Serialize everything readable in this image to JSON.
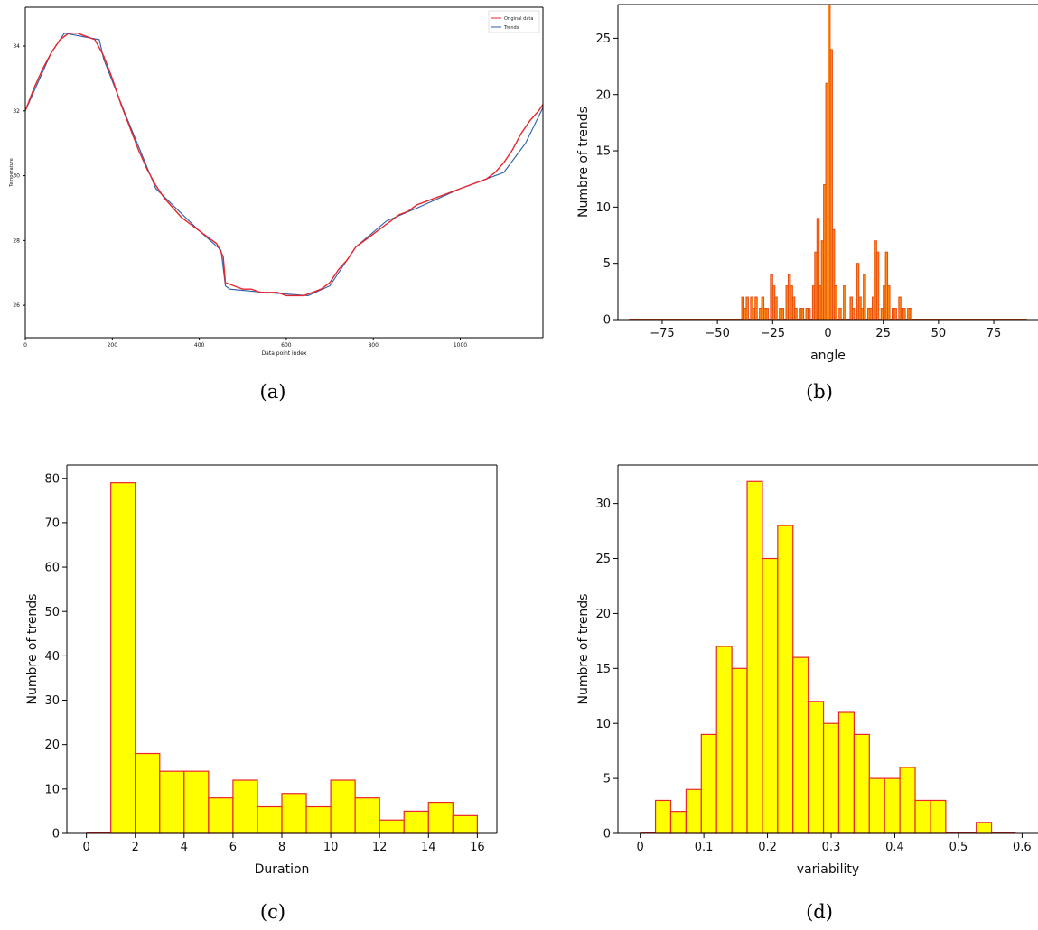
{
  "captions": [
    "(a)",
    "(b)",
    "(c)",
    "(d)"
  ],
  "colors": {
    "original": "#e8262b",
    "trend": "#2b5ea8",
    "hist_fill": "#ffff00",
    "hist_edge": "#e8262b",
    "angle_fill": "#ff8c1a",
    "angle_edge": "#e84b10"
  },
  "chart_data": [
    {
      "type": "line",
      "xlabel": "Data point index",
      "ylabel": "Temperature",
      "xlim": [
        0,
        1190
      ],
      "ylim": [
        25,
        35.2
      ],
      "xticks": [
        0,
        200,
        400,
        600,
        800,
        1000
      ],
      "yticks": [
        26,
        28,
        30,
        32,
        34
      ],
      "legend": "top-right",
      "series": [
        {
          "name": "Original data",
          "x": [
            0,
            20,
            40,
            60,
            80,
            100,
            120,
            140,
            160,
            180,
            200,
            220,
            240,
            260,
            280,
            300,
            320,
            340,
            360,
            380,
            400,
            420,
            440,
            455,
            460,
            480,
            500,
            520,
            540,
            560,
            580,
            600,
            620,
            640,
            660,
            680,
            700,
            720,
            740,
            760,
            780,
            800,
            820,
            840,
            860,
            880,
            900,
            920,
            940,
            960,
            980,
            1000,
            1020,
            1040,
            1060,
            1080,
            1100,
            1120,
            1140,
            1160,
            1180,
            1190
          ],
          "y": [
            32.0,
            32.7,
            33.3,
            33.8,
            34.2,
            34.4,
            34.4,
            34.3,
            34.2,
            33.7,
            33.0,
            32.2,
            31.5,
            30.8,
            30.2,
            29.7,
            29.3,
            29.0,
            28.7,
            28.5,
            28.3,
            28.1,
            27.9,
            27.5,
            26.7,
            26.6,
            26.5,
            26.5,
            26.4,
            26.4,
            26.4,
            26.3,
            26.3,
            26.3,
            26.4,
            26.5,
            26.7,
            27.1,
            27.4,
            27.8,
            28.0,
            28.2,
            28.4,
            28.6,
            28.8,
            28.9,
            29.1,
            29.2,
            29.3,
            29.4,
            29.5,
            29.6,
            29.7,
            29.8,
            29.9,
            30.1,
            30.4,
            30.8,
            31.3,
            31.7,
            32.0,
            32.2
          ]
        },
        {
          "name": "Trends",
          "x": [
            0,
            30,
            60,
            90,
            130,
            170,
            180,
            230,
            300,
            400,
            450,
            460,
            470,
            550,
            650,
            700,
            760,
            830,
            900,
            1000,
            1100,
            1150,
            1190
          ],
          "y": [
            32.0,
            32.9,
            33.8,
            34.4,
            34.3,
            34.2,
            33.6,
            31.9,
            29.6,
            28.3,
            27.7,
            26.6,
            26.5,
            26.4,
            26.3,
            26.6,
            27.8,
            28.6,
            29.0,
            29.6,
            30.1,
            31.0,
            32.1
          ]
        }
      ]
    },
    {
      "type": "bar",
      "xlabel": "angle",
      "ylabel": "Numbre of trends",
      "xlim": [
        -95,
        95
      ],
      "ylim": [
        0,
        28
      ],
      "xticks": [
        -75,
        -50,
        -25,
        0,
        25,
        50,
        75
      ],
      "yticks": [
        0,
        5,
        10,
        15,
        20,
        25
      ],
      "bin_width": 1,
      "bins": [
        [
          -39,
          2
        ],
        [
          -38,
          1
        ],
        [
          -37,
          2
        ],
        [
          -35,
          2
        ],
        [
          -34,
          1
        ],
        [
          -33,
          2
        ],
        [
          -31,
          1
        ],
        [
          -30,
          2
        ],
        [
          -29,
          1
        ],
        [
          -28,
          1
        ],
        [
          -26,
          4
        ],
        [
          -25,
          3
        ],
        [
          -24,
          2
        ],
        [
          -22,
          1
        ],
        [
          -21,
          1
        ],
        [
          -19,
          3
        ],
        [
          -18,
          4
        ],
        [
          -17,
          3
        ],
        [
          -16,
          2
        ],
        [
          -15,
          1
        ],
        [
          -13,
          1
        ],
        [
          -12,
          1
        ],
        [
          -10,
          1
        ],
        [
          -9,
          1
        ],
        [
          -7,
          3
        ],
        [
          -6,
          6
        ],
        [
          -5,
          9
        ],
        [
          -4,
          3
        ],
        [
          -3,
          7
        ],
        [
          -2,
          12
        ],
        [
          -1,
          21
        ],
        [
          0,
          28
        ],
        [
          1,
          24
        ],
        [
          2,
          8
        ],
        [
          3,
          3
        ],
        [
          5,
          1
        ],
        [
          7,
          3
        ],
        [
          10,
          2
        ],
        [
          11,
          1
        ],
        [
          13,
          5
        ],
        [
          14,
          2
        ],
        [
          15,
          1
        ],
        [
          16,
          4
        ],
        [
          18,
          1
        ],
        [
          19,
          1
        ],
        [
          20,
          2
        ],
        [
          21,
          7
        ],
        [
          22,
          6
        ],
        [
          24,
          1
        ],
        [
          25,
          3
        ],
        [
          26,
          6
        ],
        [
          27,
          3
        ],
        [
          29,
          1
        ],
        [
          30,
          1
        ],
        [
          32,
          2
        ],
        [
          33,
          1
        ],
        [
          34,
          1
        ],
        [
          36,
          1
        ],
        [
          37,
          1
        ]
      ]
    },
    {
      "type": "bar",
      "xlabel": "Duration",
      "ylabel": "Numbre of trends",
      "xlim": [
        -0.8,
        16.8
      ],
      "ylim": [
        0,
        83
      ],
      "xticks": [
        0,
        2,
        4,
        6,
        8,
        10,
        12,
        14,
        16
      ],
      "yticks": [
        0,
        10,
        20,
        30,
        40,
        50,
        60,
        70,
        80
      ],
      "bin_width": 1,
      "bins": [
        [
          0,
          0
        ],
        [
          1,
          79
        ],
        [
          2,
          18
        ],
        [
          3,
          14
        ],
        [
          4,
          14
        ],
        [
          5,
          8
        ],
        [
          6,
          12
        ],
        [
          7,
          6
        ],
        [
          8,
          9
        ],
        [
          9,
          6
        ],
        [
          10,
          12
        ],
        [
          11,
          8
        ],
        [
          12,
          3
        ],
        [
          13,
          5
        ],
        [
          14,
          7
        ],
        [
          15,
          4
        ]
      ]
    },
    {
      "type": "bar",
      "xlabel": "variability",
      "ylabel": "Numbre of trends",
      "xlim": [
        -0.035,
        0.625
      ],
      "ylim": [
        0,
        33.5
      ],
      "xticks": [
        0.0,
        0.1,
        0.2,
        0.3,
        0.4,
        0.5,
        0.6
      ],
      "yticks": [
        0,
        5,
        10,
        15,
        20,
        25,
        30
      ],
      "bin_width": 0.024,
      "bins": [
        [
          0.0,
          0
        ],
        [
          0.024,
          3
        ],
        [
          0.048,
          2
        ],
        [
          0.072,
          4
        ],
        [
          0.096,
          9
        ],
        [
          0.12,
          17
        ],
        [
          0.144,
          15
        ],
        [
          0.168,
          32
        ],
        [
          0.192,
          25
        ],
        [
          0.216,
          28
        ],
        [
          0.24,
          16
        ],
        [
          0.264,
          12
        ],
        [
          0.288,
          10
        ],
        [
          0.312,
          11
        ],
        [
          0.336,
          9
        ],
        [
          0.36,
          5
        ],
        [
          0.384,
          5
        ],
        [
          0.408,
          6
        ],
        [
          0.432,
          3
        ],
        [
          0.456,
          3
        ],
        [
          0.48,
          0
        ],
        [
          0.504,
          0
        ],
        [
          0.528,
          1
        ],
        [
          0.552,
          0
        ],
        [
          0.576,
          0
        ]
      ]
    }
  ]
}
